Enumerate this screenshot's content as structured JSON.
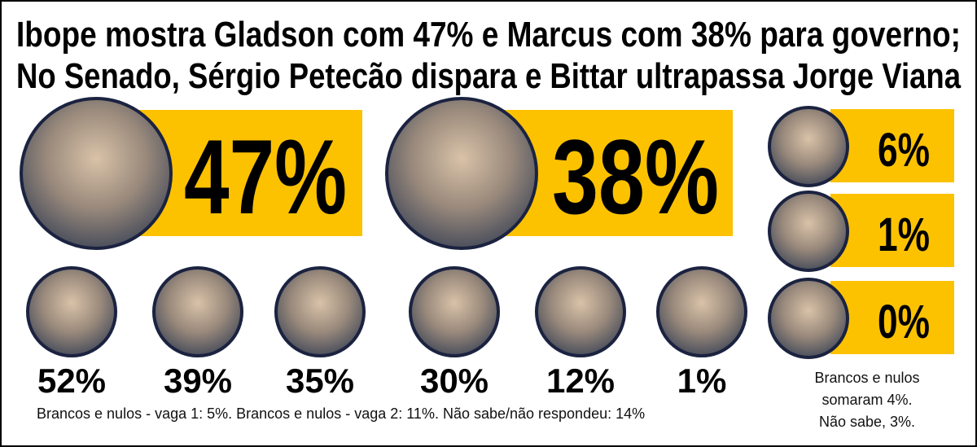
{
  "title": [
    "Ibope mostra Gladson com 47% e Marcus com 38%  para governo;",
    "No Senado, Sérgio Petecão dispara e Bittar ultrapassa Jorge Viana"
  ],
  "governor": {
    "leaders": [
      "47%",
      "38%"
    ],
    "others": [
      "6%",
      "1%",
      "0%"
    ],
    "note": [
      "Brancos e nulos",
      "somaram  4%.",
      "Não sabe, 3%."
    ]
  },
  "senate": {
    "results": [
      "52%",
      "39%",
      "35%",
      "30%",
      "12%",
      "1%"
    ],
    "note": "Brancos e nulos - vaga 1: 5%. Brancos e nulos - vaga 2: 11%. Não sabe/não respondeu: 14%"
  }
}
